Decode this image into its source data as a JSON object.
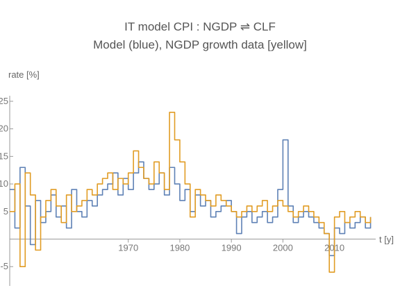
{
  "chart_data": {
    "type": "line",
    "title": "IT model CPI : NGDP ⇌ CLF",
    "subtitle": "Model (blue), NGDP growth data [yellow]",
    "xlabel": "t [y]",
    "ylabel": "rate [%]",
    "xlim": [
      1947,
      2018
    ],
    "ylim": [
      -8.5,
      26
    ],
    "grid": false,
    "x_ticks": [
      1970,
      1980,
      1990,
      2000,
      2010
    ],
    "x_tick_labels": [
      "1970",
      "1980",
      "1990",
      "2000",
      "2010"
    ],
    "y_ticks": [
      -5,
      5,
      10,
      15,
      20,
      25
    ],
    "y_tick_labels": [
      "-5",
      "5",
      "10",
      "15",
      "20",
      "25"
    ],
    "series": [
      {
        "name": "Model",
        "color": "#5e81b5",
        "x": [
          1947,
          1948,
          1949,
          1950,
          1951,
          1952,
          1953,
          1954,
          1955,
          1956,
          1957,
          1958,
          1959,
          1960,
          1961,
          1962,
          1963,
          1964,
          1965,
          1966,
          1967,
          1968,
          1969,
          1970,
          1971,
          1972,
          1973,
          1974,
          1975,
          1976,
          1977,
          1978,
          1979,
          1980,
          1981,
          1982,
          1983,
          1984,
          1985,
          1986,
          1987,
          1988,
          1989,
          1990,
          1991,
          1992,
          1993,
          1994,
          1995,
          1996,
          1997,
          1998,
          1999,
          2000,
          2001,
          2002,
          2003,
          2004,
          2005,
          2006,
          2007,
          2008,
          2009,
          2010,
          2011,
          2012,
          2013,
          2014,
          2015,
          2016,
          2017
        ],
        "values": [
          9,
          2,
          13,
          6,
          -1,
          7,
          3,
          5,
          8,
          4,
          6,
          2,
          9,
          5,
          4,
          7,
          6,
          8,
          9,
          10,
          12,
          8,
          11,
          9,
          12,
          14,
          11,
          9,
          10,
          12,
          8,
          13,
          10,
          7,
          9,
          5,
          8,
          6,
          7,
          4,
          5,
          6,
          7,
          5,
          1,
          4,
          5,
          3,
          4,
          5,
          3,
          4,
          9,
          18,
          6,
          3,
          4,
          5,
          4,
          3,
          2,
          1,
          -3,
          2,
          1,
          3,
          2,
          3,
          4,
          2,
          4
        ]
      },
      {
        "name": "NGDP growth data",
        "color": "#e19c24",
        "x": [
          1947,
          1948,
          1949,
          1950,
          1951,
          1952,
          1953,
          1954,
          1955,
          1956,
          1957,
          1958,
          1959,
          1960,
          1961,
          1962,
          1963,
          1964,
          1965,
          1966,
          1967,
          1968,
          1969,
          1970,
          1971,
          1972,
          1973,
          1974,
          1975,
          1976,
          1977,
          1978,
          1979,
          1980,
          1981,
          1982,
          1983,
          1984,
          1985,
          1986,
          1987,
          1988,
          1989,
          1990,
          1991,
          1992,
          1993,
          1994,
          1995,
          1996,
          1997,
          1998,
          1999,
          2000,
          2001,
          2002,
          2003,
          2004,
          2005,
          2006,
          2007,
          2008,
          2009,
          2010,
          2011,
          2012,
          2013,
          2014,
          2015,
          2016,
          2017
        ],
        "values": [
          5,
          10,
          -5,
          12,
          8,
          -2,
          4,
          7,
          9,
          6,
          3,
          8,
          5,
          6,
          7,
          9,
          8,
          10,
          11,
          12,
          9,
          11,
          10,
          12,
          16,
          13,
          11,
          10,
          14,
          12,
          9,
          23,
          18,
          14,
          10,
          4,
          9,
          8,
          7,
          6,
          8,
          7,
          6,
          5,
          4,
          5,
          6,
          5,
          6,
          7,
          5,
          6,
          7,
          6,
          5,
          4,
          5,
          6,
          5,
          4,
          3,
          1,
          -6,
          4,
          5,
          3,
          4,
          5,
          4,
          3,
          4
        ]
      }
    ]
  }
}
